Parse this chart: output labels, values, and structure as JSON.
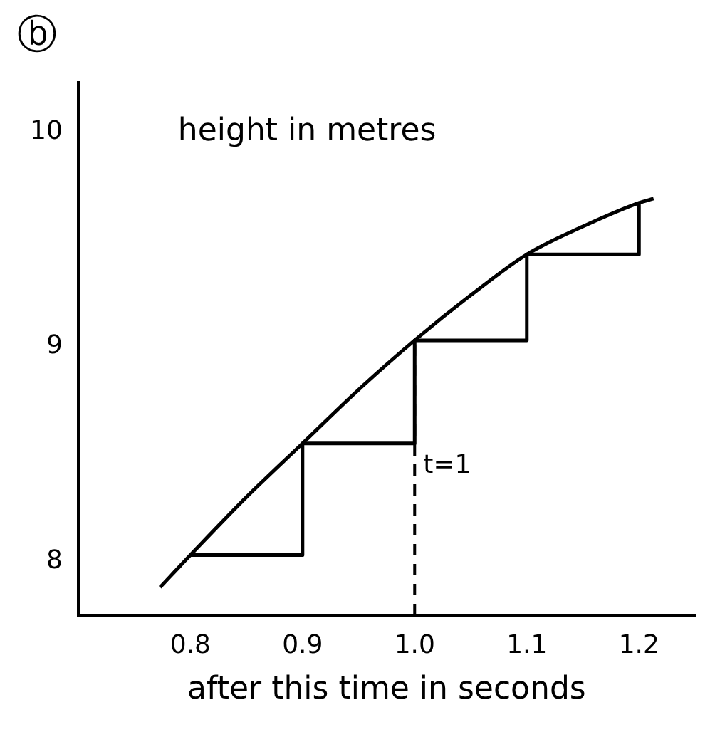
{
  "chart_data": {
    "type": "line",
    "ylabel": "height in metres",
    "xlabel": "after this time in seconds",
    "annotations": [
      "ⓑ"
    ],
    "series": [
      {
        "color": "#000000",
        "x": [
          0.773,
          0.8,
          0.85,
          0.9,
          0.95,
          1.0,
          1.05,
          1.1,
          1.15,
          1.2,
          1.213
        ],
        "values": [
          7.88,
          8.03,
          8.3,
          8.55,
          8.8,
          9.03,
          9.24,
          9.43,
          9.56,
          9.67,
          9.69
        ]
      },
      {
        "type": "step",
        "color": "#000000",
        "x": [
          0.8,
          0.9,
          1.0,
          1.1,
          1.2
        ],
        "values": [
          8.03,
          8.55,
          9.03,
          9.43,
          9.67
        ]
      }
    ],
    "xlim": [
      0.7,
      1.25
    ],
    "xticks": [
      0.8,
      0.9,
      {
        "value": 1.0,
        "label": "1.0"
      },
      1.1,
      1.2
    ],
    "ylim": [
      7.75,
      10.23
    ],
    "yticks": [
      8,
      9,
      10
    ],
    "ref_lines": [
      {
        "axis": "x",
        "value": 1.0,
        "label": "t=1",
        "line_style": "dashed",
        "color": "#000000"
      }
    ],
    "grid": false,
    "legend": false,
    "marker": "none",
    "line_style": "solid"
  }
}
